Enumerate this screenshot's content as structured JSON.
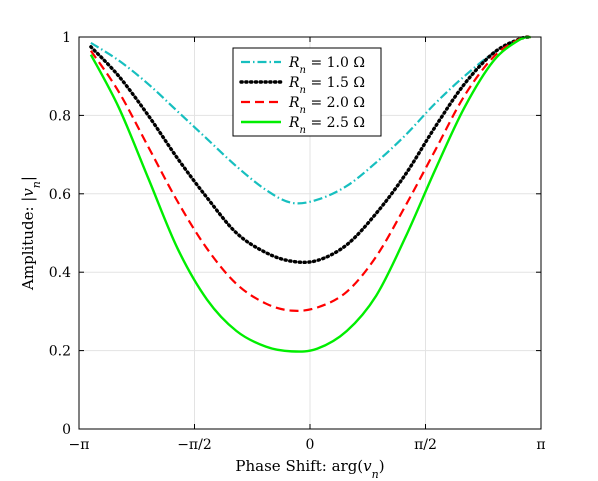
{
  "chart_data": {
    "type": "line",
    "xlabel": {
      "text": "Phase Shift: arg(",
      "var": "v",
      "sub": "n",
      "close": ")"
    },
    "ylabel": {
      "text": "Amplitude: |",
      "var": "v",
      "sub": "n",
      "close": "|"
    },
    "xlim": [
      -3.14159,
      3.14159
    ],
    "ylim": [
      0,
      1
    ],
    "grid": true,
    "legend_position": "top-center",
    "x_ticks": [
      {
        "value": -3.14159,
        "label": "−π"
      },
      {
        "value": -1.5708,
        "label": "−π/2"
      },
      {
        "value": 0,
        "label": "0"
      },
      {
        "value": 1.5708,
        "label": "π/2"
      },
      {
        "value": 3.14159,
        "label": "π"
      }
    ],
    "y_ticks": [
      {
        "value": 0,
        "label": "0"
      },
      {
        "value": 0.2,
        "label": "0.2"
      },
      {
        "value": 0.4,
        "label": "0.4"
      },
      {
        "value": 0.6,
        "label": "0.6"
      },
      {
        "value": 0.8,
        "label": "0.8"
      },
      {
        "value": 1,
        "label": "1"
      }
    ],
    "series": [
      {
        "name": "R_n = 1.0 Ω",
        "legend": {
          "var": "R",
          "sub": "n",
          "rest": " = 1.0 Ω"
        },
        "color": "#17bfbf",
        "style": "dashdot",
        "x": [
          -2.98,
          -2.6,
          -2.2,
          -1.8,
          -1.4,
          -1.0,
          -0.6,
          -0.25,
          0.1,
          0.5,
          0.9,
          1.3,
          1.7,
          2.1,
          2.5,
          2.85,
          3.0
        ],
        "y": [
          0.985,
          0.94,
          0.88,
          0.81,
          0.74,
          0.67,
          0.61,
          0.577,
          0.585,
          0.62,
          0.68,
          0.75,
          0.83,
          0.9,
          0.96,
          0.995,
          1.0
        ]
      },
      {
        "name": "R_n = 1.5 Ω",
        "legend": {
          "var": "R",
          "sub": "n",
          "rest": " = 1.5 Ω"
        },
        "color": "#000000",
        "style": "dotted",
        "x": [
          -2.98,
          -2.6,
          -2.2,
          -1.8,
          -1.4,
          -1.0,
          -0.6,
          -0.25,
          0.1,
          0.5,
          0.9,
          1.3,
          1.7,
          2.1,
          2.5,
          2.85,
          3.0
        ],
        "y": [
          0.975,
          0.9,
          0.8,
          0.69,
          0.59,
          0.5,
          0.45,
          0.428,
          0.43,
          0.47,
          0.55,
          0.65,
          0.77,
          0.88,
          0.96,
          0.995,
          1.0
        ]
      },
      {
        "name": "R_n = 2.0 Ω",
        "legend": {
          "var": "R",
          "sub": "n",
          "rest": " = 2.0 Ω"
        },
        "color": "#ff0000",
        "style": "dashed",
        "x": [
          -2.98,
          -2.6,
          -2.2,
          -1.8,
          -1.4,
          -1.0,
          -0.6,
          -0.25,
          0.1,
          0.5,
          0.9,
          1.3,
          1.7,
          2.1,
          2.5,
          2.85,
          3.0
        ],
        "y": [
          0.965,
          0.86,
          0.72,
          0.58,
          0.46,
          0.37,
          0.32,
          0.302,
          0.31,
          0.35,
          0.44,
          0.57,
          0.71,
          0.85,
          0.95,
          0.995,
          1.0
        ]
      },
      {
        "name": "R_n = 2.5 Ω",
        "legend": {
          "var": "R",
          "sub": "n",
          "rest": " = 2.5 Ω"
        },
        "color": "#00ee00",
        "style": "solid",
        "x": [
          -2.98,
          -2.6,
          -2.2,
          -1.8,
          -1.4,
          -1.0,
          -0.6,
          -0.25,
          0.1,
          0.5,
          0.9,
          1.3,
          1.7,
          2.1,
          2.5,
          2.85,
          3.0
        ],
        "y": [
          0.955,
          0.82,
          0.64,
          0.46,
          0.33,
          0.25,
          0.21,
          0.198,
          0.205,
          0.25,
          0.34,
          0.49,
          0.66,
          0.82,
          0.94,
          0.993,
          1.0
        ]
      }
    ]
  }
}
